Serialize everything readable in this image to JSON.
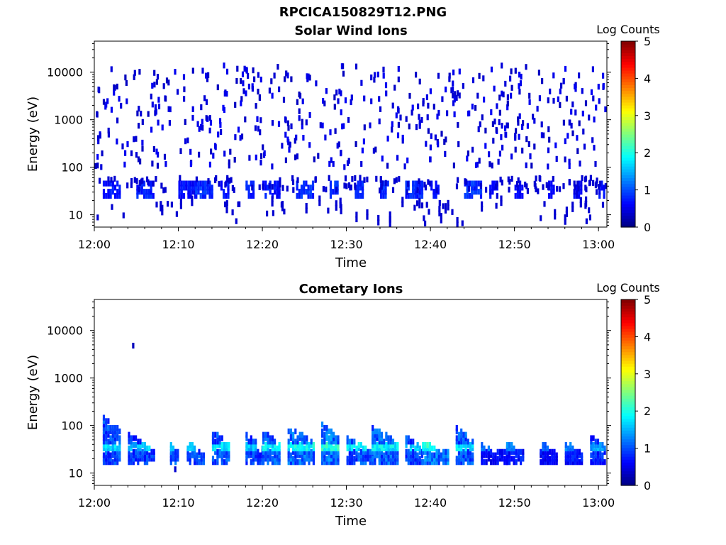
{
  "figure": {
    "filename": "RPCICA150829T12.PNG"
  },
  "colors": {
    "colormap": [
      "#00007f",
      "#0000ff",
      "#007fff",
      "#00ffff",
      "#7fff7f",
      "#ffff00",
      "#ff7f00",
      "#ff0000",
      "#7f0000"
    ],
    "axis": "#000000"
  },
  "chart_data": [
    {
      "type": "heatmap",
      "title": "Solar Wind Ions",
      "xlabel": "Time",
      "ylabel": "Energy (eV)",
      "y_scale": "log",
      "xlim": [
        "12:00",
        "13:01"
      ],
      "ylim": [
        5.5,
        45000
      ],
      "x_ticks": [
        "12:00",
        "12:10",
        "12:20",
        "12:30",
        "12:40",
        "12:50",
        "13:00"
      ],
      "y_ticks": [
        10,
        100,
        1000,
        10000
      ],
      "y_tick_labels": [
        "10",
        "100",
        "1000",
        "10000"
      ],
      "colorbar": {
        "label": "Log Counts",
        "range": [
          0,
          5
        ],
        "ticks": [
          "0",
          "1",
          "2",
          "3",
          "4",
          "5"
        ]
      },
      "description_bands": [
        {
          "energy_range_eV": [
            25,
            50
          ],
          "log_counts": 0.6,
          "note": "dense low-energy band, recurring bursts"
        },
        {
          "energy_range_eV": [
            5.5,
            20
          ],
          "log_counts": 0.4,
          "note": "vertical streaks"
        },
        {
          "energy_range_eV": [
            100,
            15000
          ],
          "log_counts": 0.3,
          "note": "sparse scattered counts"
        }
      ],
      "bursts": [
        {
          "start": "12:01",
          "end": "12:03",
          "level": 0.8
        },
        {
          "start": "12:05",
          "end": "12:07",
          "level": 0.9
        },
        {
          "start": "12:10",
          "end": "12:12",
          "level": 0.7
        },
        {
          "start": "12:12",
          "end": "12:14",
          "level": 1.0
        },
        {
          "start": "12:15",
          "end": "12:16",
          "level": 0.8
        },
        {
          "start": "12:18",
          "end": "12:19",
          "level": 0.9
        },
        {
          "start": "12:20",
          "end": "12:22",
          "level": 0.8
        },
        {
          "start": "12:24",
          "end": "12:26",
          "level": 1.0
        },
        {
          "start": "12:28",
          "end": "12:29",
          "level": 1.0
        },
        {
          "start": "12:31",
          "end": "12:32",
          "level": 0.9
        },
        {
          "start": "12:34",
          "end": "12:35",
          "level": 1.0
        },
        {
          "start": "12:37",
          "end": "12:39",
          "level": 0.9
        },
        {
          "start": "12:40",
          "end": "12:41",
          "level": 0.7
        },
        {
          "start": "12:44",
          "end": "12:46",
          "level": 1.0
        },
        {
          "start": "12:47",
          "end": "12:48",
          "level": 0.6
        },
        {
          "start": "12:50",
          "end": "12:51",
          "level": 0.6
        },
        {
          "start": "12:54",
          "end": "12:55",
          "level": 0.7
        },
        {
          "start": "12:57",
          "end": "12:58",
          "level": 0.6
        },
        {
          "start": "13:00",
          "end": "13:01",
          "level": 0.7
        }
      ]
    },
    {
      "type": "heatmap",
      "title": "Cometary Ions",
      "xlabel": "Time",
      "ylabel": "Energy (eV)",
      "y_scale": "log",
      "xlim": [
        "12:00",
        "13:01"
      ],
      "ylim": [
        5.5,
        45000
      ],
      "x_ticks": [
        "12:00",
        "12:10",
        "12:20",
        "12:30",
        "12:40",
        "12:50",
        "13:00"
      ],
      "y_ticks": [
        10,
        100,
        1000,
        10000
      ],
      "y_tick_labels": [
        "10",
        "100",
        "1000",
        "10000"
      ],
      "colorbar": {
        "label": "Log Counts",
        "range": [
          0,
          5
        ],
        "ticks": [
          "0",
          "1",
          "2",
          "3",
          "4",
          "5"
        ]
      },
      "isolated_points": [
        {
          "time": "12:04.5",
          "energy_eV": 4800,
          "log_counts": 0.3
        },
        {
          "time": "12:09.5",
          "energy_eV": 12,
          "log_counts": 0.4
        }
      ],
      "bursts": [
        {
          "start": "12:01",
          "end": "12:03",
          "peak_log_counts": 1.9,
          "max_energy_eV": 150
        },
        {
          "start": "12:04",
          "end": "12:07",
          "peak_log_counts": 1.8,
          "max_energy_eV": 65
        },
        {
          "start": "12:09",
          "end": "12:10",
          "peak_log_counts": 2.0,
          "max_energy_eV": 40
        },
        {
          "start": "12:11",
          "end": "12:13",
          "peak_log_counts": 1.9,
          "max_energy_eV": 45
        },
        {
          "start": "12:14",
          "end": "12:16",
          "peak_log_counts": 2.0,
          "max_energy_eV": 75
        },
        {
          "start": "12:18",
          "end": "12:20",
          "peak_log_counts": 1.8,
          "max_energy_eV": 65
        },
        {
          "start": "12:20",
          "end": "12:22",
          "peak_log_counts": 2.0,
          "max_energy_eV": 75
        },
        {
          "start": "12:23",
          "end": "12:26",
          "peak_log_counts": 2.2,
          "max_energy_eV": 90
        },
        {
          "start": "12:27",
          "end": "12:29",
          "peak_log_counts": 2.3,
          "max_energy_eV": 105
        },
        {
          "start": "12:30",
          "end": "12:33",
          "peak_log_counts": 2.0,
          "max_energy_eV": 55
        },
        {
          "start": "12:33",
          "end": "12:36",
          "peak_log_counts": 2.1,
          "max_energy_eV": 90
        },
        {
          "start": "12:37",
          "end": "12:39",
          "peak_log_counts": 1.9,
          "max_energy_eV": 60
        },
        {
          "start": "12:39",
          "end": "12:42",
          "peak_log_counts": 2.3,
          "max_energy_eV": 45
        },
        {
          "start": "12:43",
          "end": "12:45",
          "peak_log_counts": 2.0,
          "max_energy_eV": 90
        },
        {
          "start": "12:46",
          "end": "12:49",
          "peak_log_counts": 1.3,
          "max_energy_eV": 40
        },
        {
          "start": "12:49",
          "end": "12:51",
          "peak_log_counts": 1.4,
          "max_energy_eV": 45
        },
        {
          "start": "12:53",
          "end": "12:55",
          "peak_log_counts": 1.2,
          "max_energy_eV": 45
        },
        {
          "start": "12:56",
          "end": "12:58",
          "peak_log_counts": 1.4,
          "max_energy_eV": 45
        },
        {
          "start": "12:59",
          "end": "13:01",
          "peak_log_counts": 1.6,
          "max_energy_eV": 60
        }
      ]
    }
  ]
}
